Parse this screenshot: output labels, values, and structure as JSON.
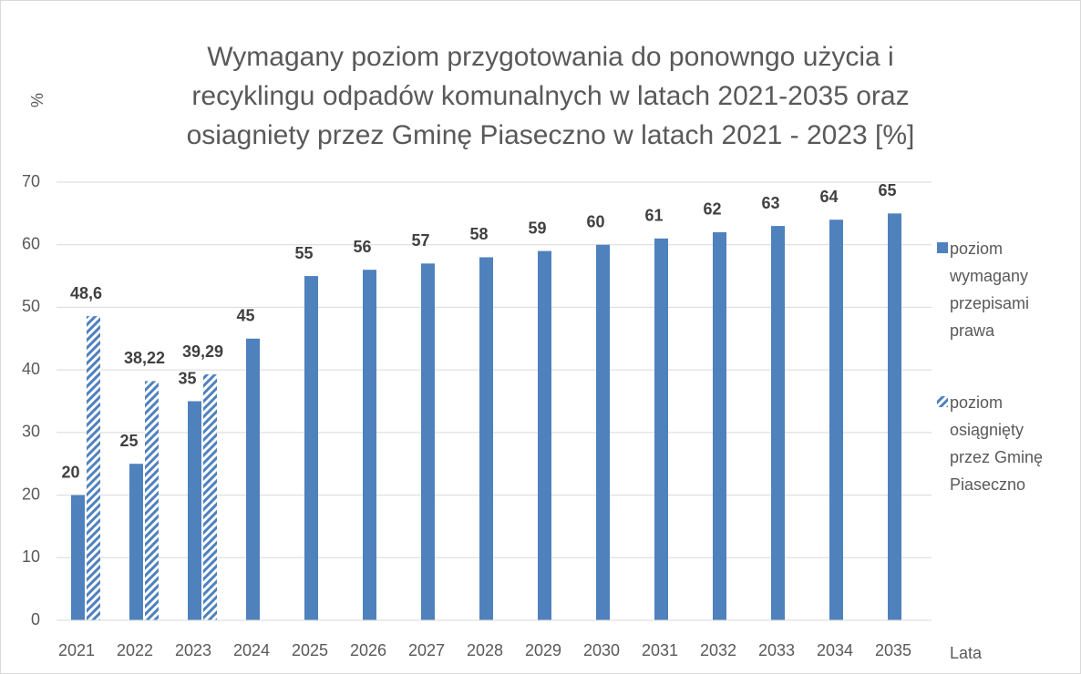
{
  "chart_data": {
    "type": "bar",
    "title": [
      "Wymagany poziom przygotowania do ponowngo użycia i",
      "recyklingu odpadów komunalnych w latach 2021-2035 oraz",
      "osiagniety przez Gminę Piaseczno w latach 2021 - 2023 [%]"
    ],
    "y_label": "%",
    "x_label": "Lata",
    "categories": [
      "2021",
      "2022",
      "2023",
      "2024",
      "2025",
      "2026",
      "2027",
      "2028",
      "2029",
      "2030",
      "2031",
      "2032",
      "2033",
      "2034",
      "2035"
    ],
    "series": [
      {
        "name": "poziom wymagany przepisami prawa",
        "color": "#4f81bd",
        "hatch": false,
        "values": [
          20,
          25,
          35,
          45,
          55,
          56,
          57,
          58,
          59,
          60,
          61,
          62,
          63,
          64,
          65
        ]
      },
      {
        "name": "poziom osiągnięty przez Gminę Piaseczno",
        "color": "#4f81bd",
        "hatch": true,
        "values": [
          48.6,
          38.22,
          39.29,
          null,
          null,
          null,
          null,
          null,
          null,
          null,
          null,
          null,
          null,
          null,
          null
        ],
        "value_labels": [
          "48,6",
          "38,22",
          "39,29",
          null,
          null,
          null,
          null,
          null,
          null,
          null,
          null,
          null,
          null,
          null,
          null
        ]
      }
    ],
    "ylim": [
      0,
      70
    ],
    "yticks": [
      0,
      10,
      20,
      30,
      40,
      50,
      60,
      70
    ],
    "grid": true,
    "legend": "right"
  }
}
